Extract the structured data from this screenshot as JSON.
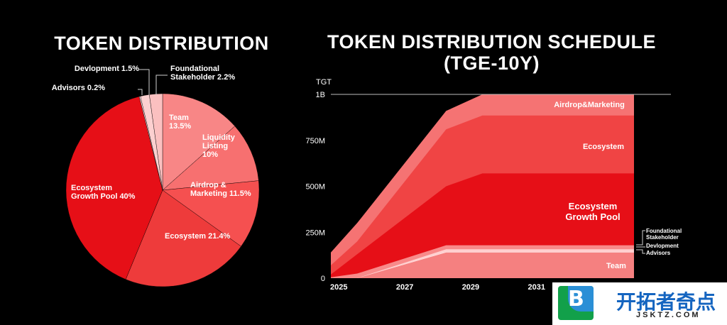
{
  "chart_data": [
    {
      "type": "pie",
      "title": "TOKEN DISTRIBUTION",
      "slices": [
        {
          "name": "Team",
          "value": 13.5,
          "label_lines": [
            "Team",
            "13.5%"
          ],
          "color": "#f88686"
        },
        {
          "name": "Liquidity Listing",
          "value": 10,
          "label_lines": [
            "Liquidity",
            "Listing",
            "10%"
          ],
          "color": "#f77070"
        },
        {
          "name": "Airdrop & Marketing",
          "value": 11.5,
          "label_lines": [
            "Airdrop &",
            "Marketing 11.5%"
          ],
          "color": "#f55050"
        },
        {
          "name": "Ecosystem",
          "value": 21.4,
          "label_lines": [
            "Ecosystem 21.4%"
          ],
          "color": "#ee3b3b"
        },
        {
          "name": "Ecosystem Growth Pool",
          "value": 40,
          "label_lines": [
            "Ecosystem",
            "Growth Pool 40%"
          ],
          "color": "#e60f17"
        },
        {
          "name": "Advisors",
          "value": 0.2,
          "label_lines": [
            "Advisors 0.2%"
          ],
          "color": "#fde0e0"
        },
        {
          "name": "Devlopment",
          "value": 1.5,
          "label_lines": [
            "Devlopment 1.5%"
          ],
          "color": "#fcd0d0"
        },
        {
          "name": "Foundational Stakeholder",
          "value": 2.2,
          "label_lines": [
            "Foundational",
            "Stakeholder 2.2%"
          ],
          "color": "#fbc0c0"
        }
      ]
    },
    {
      "type": "area",
      "title": "TOKEN DISTRIBUTION SCHEDULE (TGE-10Y)",
      "title_lines": [
        "TOKEN DISTRIBUTION SCHEDULE",
        "(TGE-10Y)"
      ],
      "ylabel": "TGT",
      "ylim": [
        0,
        1000
      ],
      "xlim": [
        2024.8,
        2034
      ],
      "x_ticks": [
        2025,
        2027,
        2029,
        2031
      ],
      "x_tick_labels": [
        "2025",
        "2027",
        "2029",
        "2031"
      ],
      "y_ticks": [
        0,
        250,
        500,
        750,
        1000
      ],
      "y_tick_labels": [
        "0",
        "250M",
        "500M",
        "750M",
        "1B"
      ],
      "cumulative_layers": [
        {
          "name": "Team",
          "color": "#f58080",
          "points": [
            [
              2024.8,
              0
            ],
            [
              2025.6,
              0
            ],
            [
              2028.3,
              140
            ],
            [
              2034,
              140
            ]
          ]
        },
        {
          "name": "Advisors",
          "color": "#fff2f2",
          "points": [
            [
              2024.8,
              0
            ],
            [
              2025.6,
              0
            ],
            [
              2028.3,
              142
            ],
            [
              2034,
              142
            ]
          ]
        },
        {
          "name": "Devlopment",
          "color": "#ffd0d0",
          "points": [
            [
              2024.8,
              0
            ],
            [
              2025.6,
              0
            ],
            [
              2028.3,
              157
            ],
            [
              2034,
              157
            ]
          ]
        },
        {
          "name": "Foundational Stakeholder",
          "color": "#f88a8a",
          "points": [
            [
              2024.8,
              5
            ],
            [
              2025.6,
              25
            ],
            [
              2028.3,
              179
            ],
            [
              2034,
              179
            ]
          ]
        },
        {
          "name": "Ecosystem Growth Pool",
          "color": "#e60f17",
          "points": [
            [
              2024.8,
              20
            ],
            [
              2025.6,
              130
            ],
            [
              2028.3,
              500
            ],
            [
              2029.4,
              570
            ],
            [
              2034,
              570
            ]
          ]
        },
        {
          "name": "Ecosystem",
          "color": "#f04444",
          "points": [
            [
              2024.8,
              70
            ],
            [
              2025.6,
              200
            ],
            [
              2028.3,
              810
            ],
            [
              2029.4,
              885
            ],
            [
              2034,
              885
            ]
          ]
        },
        {
          "name": "Airdrop&Marketing",
          "color": "#f57373",
          "points": [
            [
              2024.8,
              140
            ],
            [
              2025.6,
              300
            ],
            [
              2028.3,
              910
            ],
            [
              2029.4,
              1000
            ],
            [
              2034,
              1000
            ]
          ]
        }
      ],
      "layer_labels": [
        {
          "lines": [
            "Airdrop&Marketing"
          ],
          "size": 11
        },
        {
          "lines": [
            "Ecosystem"
          ],
          "size": 11
        },
        {
          "lines": [
            "Ecosystem",
            "Growth Pool"
          ],
          "size": 13
        },
        {
          "lines": [
            "Team"
          ],
          "size": 11
        }
      ],
      "callouts": [
        {
          "lines": [
            "Foundational",
            "Stakeholder"
          ]
        },
        {
          "lines": [
            "Devlopment"
          ]
        },
        {
          "lines": [
            "Advisors"
          ]
        }
      ]
    }
  ],
  "watermark": {
    "icon_letter": "B",
    "text": "开拓者奇点",
    "subtext": "JSKTZ.COM"
  }
}
